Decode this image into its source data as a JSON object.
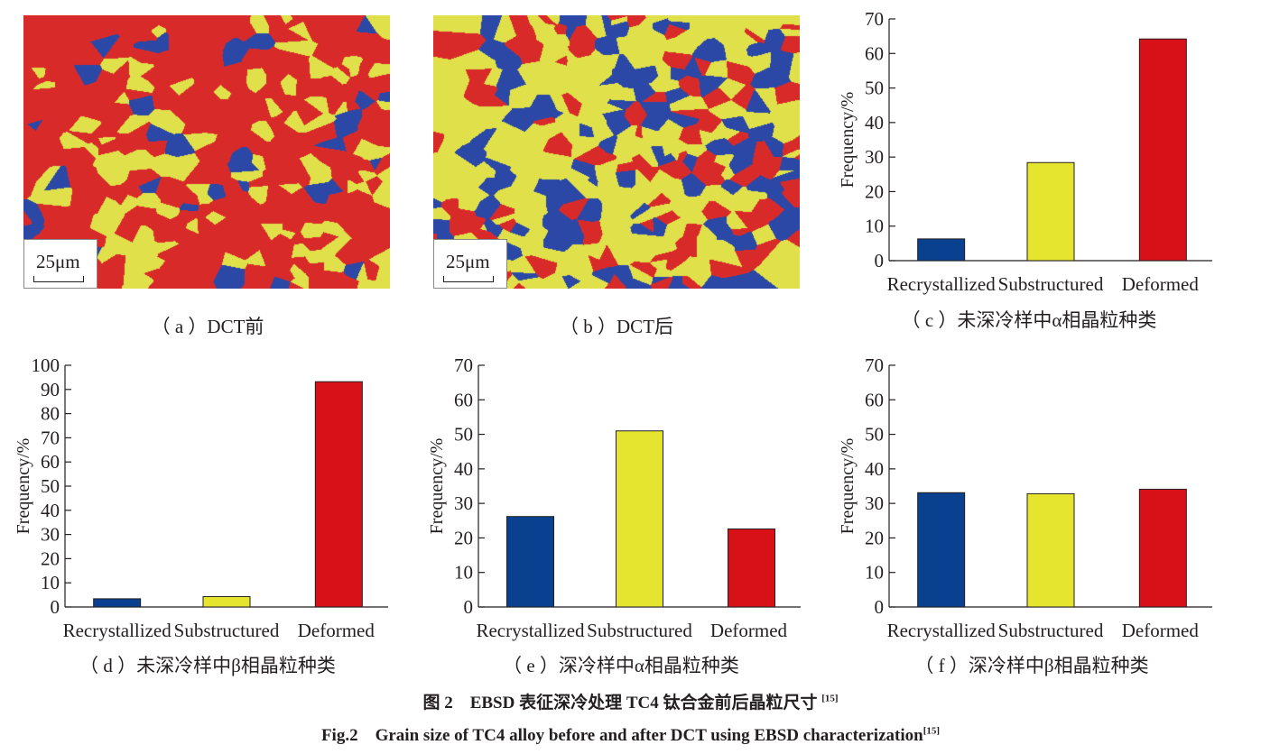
{
  "images": [
    {
      "scale_label": "25μm",
      "caption": "（ a ）DCT前",
      "dominant": "red"
    },
    {
      "scale_label": "25μm",
      "caption": "（ b ）DCT后",
      "dominant": "yellow"
    }
  ],
  "colors": {
    "recrystallized": "#0a4090",
    "substructured": "#e5e52f",
    "deformed": "#d81119"
  },
  "chart_data": [
    {
      "id": "c",
      "type": "bar",
      "categories": [
        "Recrystallized",
        "Substructured",
        "Deformed"
      ],
      "values": [
        6.3,
        28.4,
        64.2
      ],
      "ylabel": "Frequency/%",
      "ylim": [
        0,
        70
      ],
      "yticks": [
        0,
        10,
        20,
        30,
        40,
        50,
        60,
        70
      ],
      "grid": false,
      "caption": "（ c ）未深冷样中α相晶粒种类"
    },
    {
      "id": "d",
      "type": "bar",
      "categories": [
        "Recrystallized",
        "Substructured",
        "Deformed"
      ],
      "values": [
        3.4,
        4.3,
        93.2
      ],
      "ylabel": "Frequency/%",
      "ylim": [
        0,
        100
      ],
      "yticks": [
        0,
        10,
        20,
        30,
        40,
        50,
        60,
        70,
        80,
        90,
        100
      ],
      "grid": false,
      "caption": "（ d ）未深冷样中β相晶粒种类"
    },
    {
      "id": "e",
      "type": "bar",
      "categories": [
        "Recrystallized",
        "Substructured",
        "Deformed"
      ],
      "values": [
        26.2,
        51.0,
        22.6
      ],
      "ylabel": "Frequency/%",
      "ylim": [
        0,
        70
      ],
      "yticks": [
        0,
        10,
        20,
        30,
        40,
        50,
        60,
        70
      ],
      "grid": false,
      "caption": "（ e ）深冷样中α相晶粒种类"
    },
    {
      "id": "f",
      "type": "bar",
      "categories": [
        "Recrystallized",
        "Substructured",
        "Deformed"
      ],
      "values": [
        33.1,
        32.8,
        34.1
      ],
      "ylabel": "Frequency/%",
      "ylim": [
        0,
        70
      ],
      "yticks": [
        0,
        10,
        20,
        30,
        40,
        50,
        60,
        70
      ],
      "grid": false,
      "caption": "（ f ）深冷样中β相晶粒种类"
    }
  ],
  "figure": {
    "title_cn": "图 2　EBSD 表征深冷处理 TC4 钛合金前后晶粒尺寸",
    "title_en": "Fig.2　Grain size of TC4 alloy before and after DCT using EBSD characterization",
    "ref": "[15]"
  }
}
